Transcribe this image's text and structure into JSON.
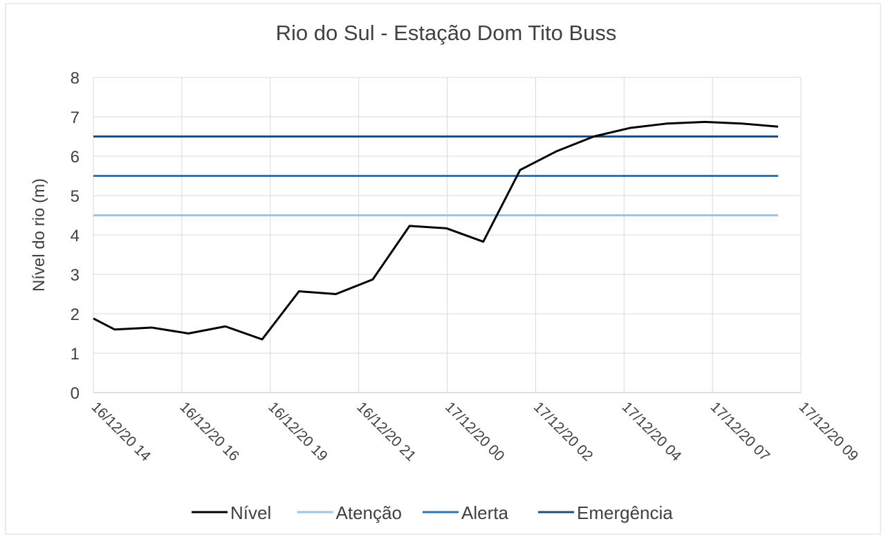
{
  "chart_data": {
    "type": "line",
    "title": "Rio do Sul - Estação Dom Tito Buss",
    "y_label": "Nível  do rio (m)",
    "x": [
      14,
      14.58,
      15.58,
      16.58,
      17.58,
      18.58,
      19.58,
      20.58,
      21.58,
      22.58,
      23.58,
      24.58,
      25.58,
      26.58,
      27.58,
      28.58,
      29.58,
      30.58,
      31.58,
      32.58
    ],
    "series": [
      {
        "name": "Nível",
        "color": "#000000",
        "values": [
          1.88,
          1.6,
          1.65,
          1.5,
          1.68,
          1.35,
          2.57,
          2.5,
          2.87,
          4.23,
          4.17,
          3.83,
          5.65,
          6.13,
          6.5,
          6.72,
          6.83,
          6.87,
          6.83,
          6.75
        ]
      },
      {
        "name": "Atenção",
        "color": "#9dc3e6",
        "values": [
          4.5,
          4.5,
          4.5,
          4.5,
          4.5,
          4.5,
          4.5,
          4.5,
          4.5,
          4.5,
          4.5,
          4.5,
          4.5,
          4.5,
          4.5,
          4.5,
          4.5,
          4.5,
          4.5,
          4.5
        ]
      },
      {
        "name": "Alerta",
        "color": "#2e75b6",
        "values": [
          5.5,
          5.5,
          5.5,
          5.5,
          5.5,
          5.5,
          5.5,
          5.5,
          5.5,
          5.5,
          5.5,
          5.5,
          5.5,
          5.5,
          5.5,
          5.5,
          5.5,
          5.5,
          5.5,
          5.5
        ]
      },
      {
        "name": "Emergência",
        "color": "#1f4e79",
        "values": [
          6.5,
          6.5,
          6.5,
          6.5,
          6.5,
          6.5,
          6.5,
          6.5,
          6.5,
          6.5,
          6.5,
          6.5,
          6.5,
          6.5,
          6.5,
          6.5,
          6.5,
          6.5,
          6.5,
          6.5
        ]
      }
    ],
    "xlim": [
      14,
      33.2
    ],
    "xticks": [
      {
        "value": 14,
        "label": "16/12/20 14"
      },
      {
        "value": 16.4,
        "label": "16/12/20 16"
      },
      {
        "value": 18.8,
        "label": "16/12/20 19"
      },
      {
        "value": 21.2,
        "label": "16/12/20 21"
      },
      {
        "value": 23.6,
        "label": "17/12/20 00"
      },
      {
        "value": 26,
        "label": "17/12/20 02"
      },
      {
        "value": 28.4,
        "label": "17/12/20 04"
      },
      {
        "value": 30.8,
        "label": "17/12/20 07"
      },
      {
        "value": 33.2,
        "label": "17/12/20 09"
      }
    ],
    "ylim": [
      0,
      8
    ],
    "yticks": [
      0,
      1,
      2,
      3,
      4,
      5,
      6,
      7,
      8
    ],
    "grid": true,
    "legend": "bottom"
  }
}
